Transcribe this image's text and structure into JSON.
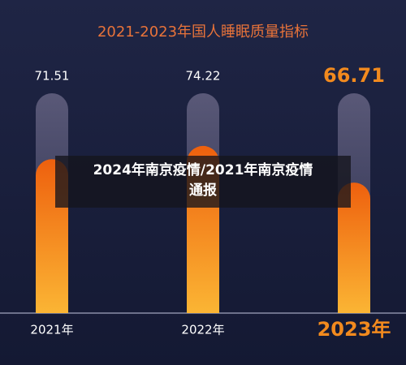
{
  "chart_data": {
    "type": "bar",
    "title": "2021-2023年国人睡眠质量指标",
    "categories": [
      "2021年",
      "2022年",
      "2023年"
    ],
    "values": [
      71.51,
      74.22,
      66.71
    ],
    "value_labels": [
      "71.51",
      "74.22",
      "66.71"
    ],
    "ylim": [
      40,
      85
    ],
    "highlight_index": 2,
    "color": "#f5801c",
    "title_color": "#e8733a",
    "highlight_color": "#f28a1e"
  },
  "overlay": {
    "text": "2024年南京疫情/2021年南京疫情通报"
  }
}
